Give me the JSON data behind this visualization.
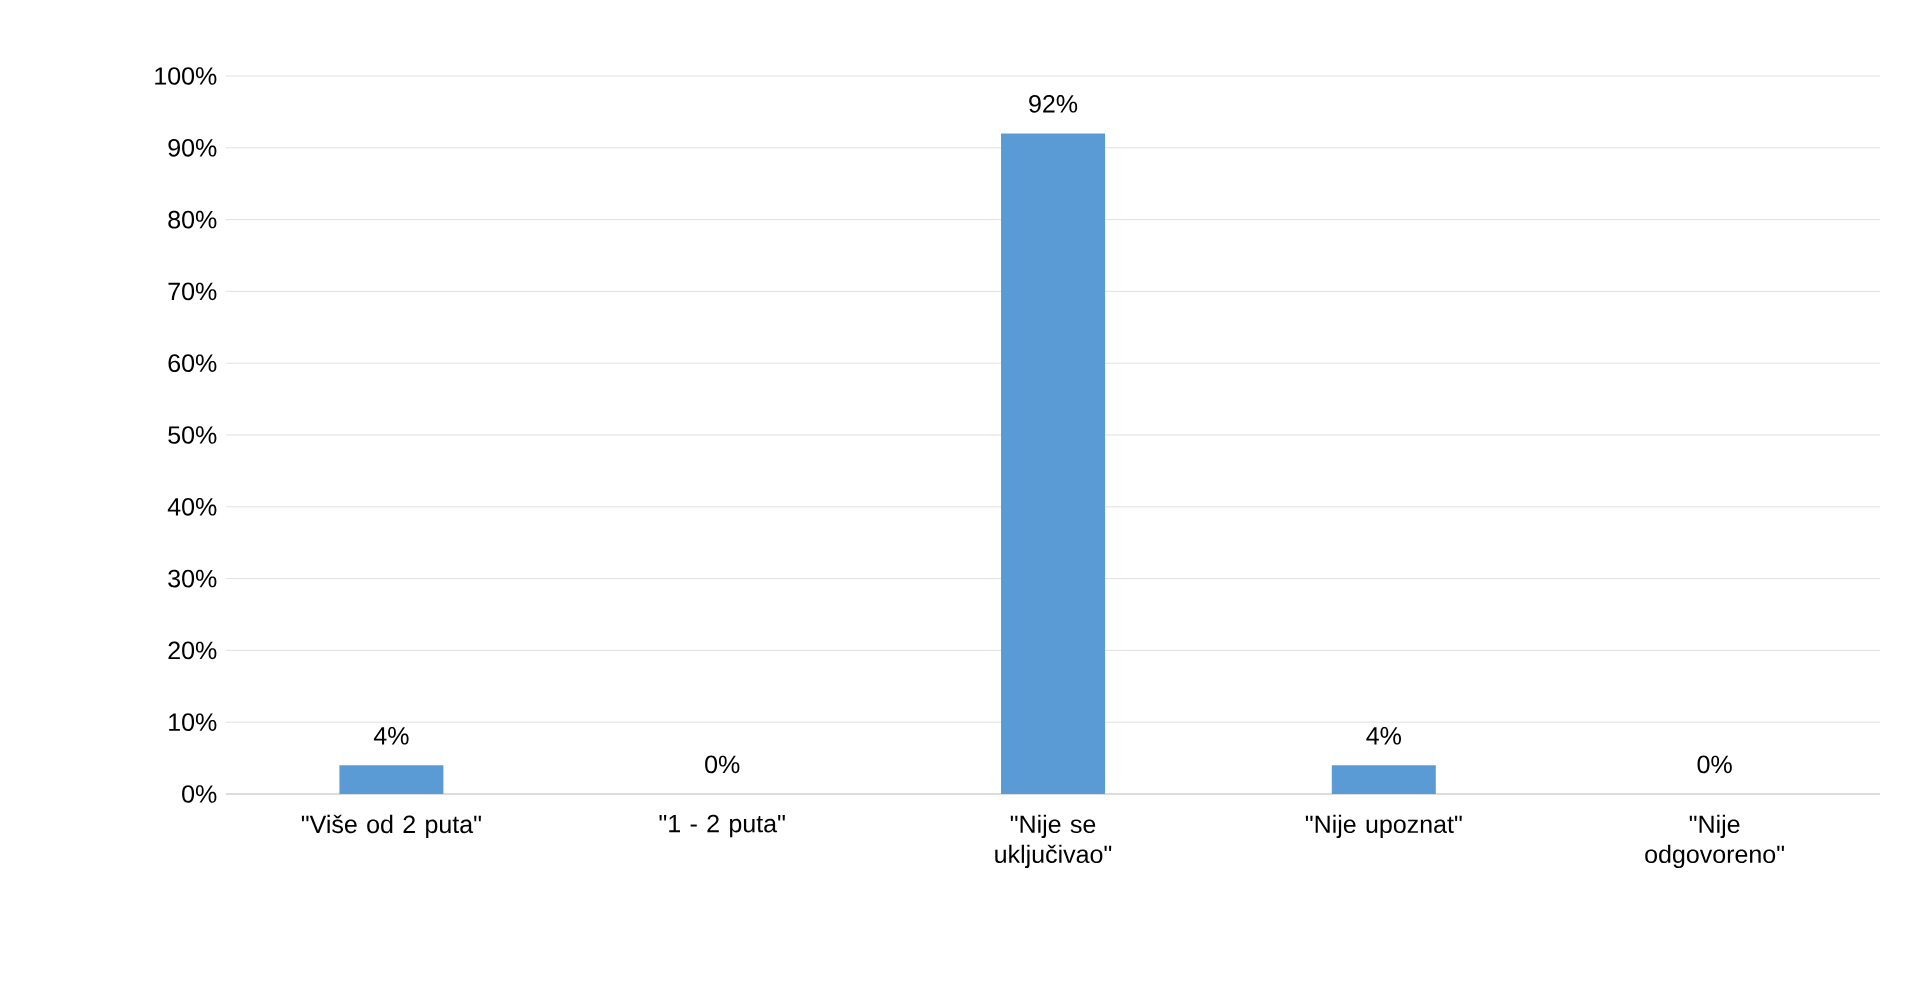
{
  "chart_data": {
    "type": "bar",
    "categories": [
      "\"Više od 2 puta\"",
      "\"1 - 2 puta\"",
      "\"Nije se uključivao\"",
      "\"Nije upoznat\"",
      "\"Nije odgovoreno\""
    ],
    "values": [
      4,
      0,
      92,
      4,
      0
    ],
    "value_labels": [
      "4%",
      "0%",
      "92%",
      "4%",
      "0%"
    ],
    "color": "#5b9bd5",
    "ylim": [
      0,
      100
    ],
    "yticks": [
      {
        "value": 0,
        "label": "0%"
      },
      {
        "value": 10,
        "label": "10%"
      },
      {
        "value": 20,
        "label": "20%"
      },
      {
        "value": 30,
        "label": "30%"
      },
      {
        "value": 40,
        "label": "40%"
      },
      {
        "value": 50,
        "label": "50%"
      },
      {
        "value": 60,
        "label": "60%"
      },
      {
        "value": 70,
        "label": "70%"
      },
      {
        "value": 80,
        "label": "80%"
      },
      {
        "value": 90,
        "label": "90%"
      },
      {
        "value": 100,
        "label": "100%"
      }
    ],
    "grid": "y"
  }
}
